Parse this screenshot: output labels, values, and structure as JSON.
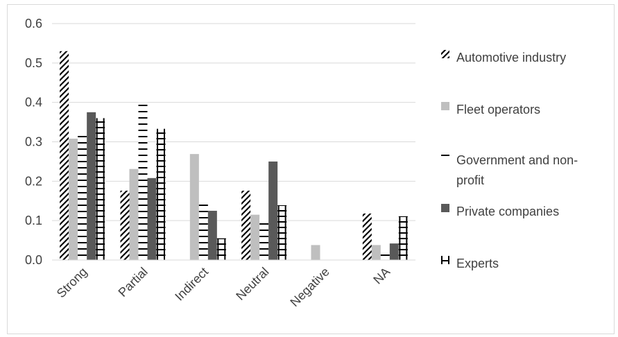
{
  "chart_data": {
    "type": "bar",
    "title": "",
    "xlabel": "",
    "ylabel": "",
    "ylim": [
      0,
      0.6
    ],
    "yticks": [
      "0.0",
      "0.1",
      "0.2",
      "0.3",
      "0.4",
      "0.5",
      "0.6"
    ],
    "grid": true,
    "legend_position": "right",
    "categories": [
      "Strong",
      "Partial",
      "Indirect",
      "Neutral",
      "Negative",
      "NA"
    ],
    "series": [
      {
        "name": "Automotive industry",
        "pattern": "diagonal-hatch",
        "color": "#000000",
        "values": [
          0.53,
          0.176,
          0,
          0.176,
          0,
          0.118
        ]
      },
      {
        "name": "Fleet operators",
        "pattern": "solid",
        "color": "#bfbfbf",
        "values": [
          0.308,
          0.231,
          0.269,
          0.115,
          0.038,
          0.038
        ]
      },
      {
        "name": "Government and non-profit",
        "pattern": "horizontal-lines",
        "color": "#000000",
        "values": [
          0.316,
          0.4,
          0.145,
          0.105,
          0,
          0.026
        ]
      },
      {
        "name": "Private companies",
        "pattern": "solid",
        "color": "#595959",
        "values": [
          0.375,
          0.208,
          0.125,
          0.25,
          0,
          0.042
        ]
      },
      {
        "name": "Experts",
        "pattern": "ladder",
        "color": "#000000",
        "values": [
          0.36,
          0.333,
          0.055,
          0.139,
          0,
          0.111
        ]
      }
    ]
  }
}
